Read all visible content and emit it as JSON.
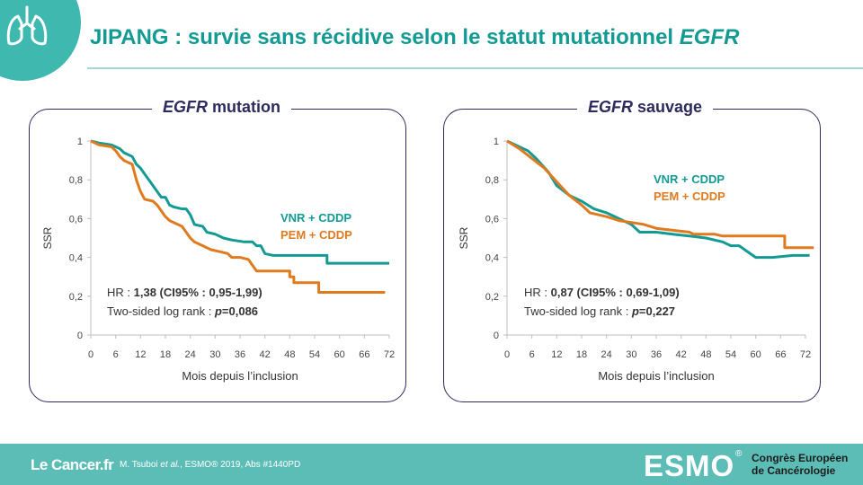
{
  "header": {
    "title_prefix": "JIPANG : survie sans récidive selon le statut mutationnel ",
    "title_italic": "EGFR"
  },
  "footer": {
    "logo": "Le Cancer.fr",
    "citation_prefix": "M. Tsuboi ",
    "citation_etal": "et al.",
    "citation_suffix": ", ESMO® 2019, Abs #1440PD",
    "esmo": "ESMO",
    "esmo_reg": "®",
    "congres_line1": "Congrès Européen",
    "congres_line2": "de Cancérologie"
  },
  "colors": {
    "vnr": "#139a93",
    "pem": "#e07a1f",
    "title": "#139a93",
    "panel_border": "#2d2a5e",
    "footer": "#5bbdb6"
  },
  "chart_data": [
    {
      "type": "line",
      "title_italic": "EGFR",
      "title_rest": " mutation",
      "xlabel": "Mois depuis l’inclusion",
      "ylabel": "SSR",
      "xlim": [
        0,
        72
      ],
      "ylim": [
        0,
        1
      ],
      "xticks": [
        0,
        6,
        12,
        18,
        24,
        30,
        36,
        42,
        48,
        54,
        60,
        66,
        72
      ],
      "yticks": [
        0,
        0.2,
        0.4,
        0.6,
        0.8,
        1
      ],
      "ytick_labels": [
        "0",
        "0,2",
        "0,4",
        "0,6",
        "0,8",
        "1"
      ],
      "legend": [
        "VNR + CDDP",
        "PEM + CDDP"
      ],
      "stats": {
        "hr_label": "HR : ",
        "hr_value": "1,38 (CI95% : 0,95-1,99)",
        "lr_label": "Two-sided log rank : ",
        "lr_p": "p",
        "lr_value": "=0,086"
      },
      "series": [
        {
          "name": "VNR + CDDP",
          "color": "#139a93",
          "points": [
            [
              0,
              1.0
            ],
            [
              2,
              0.99
            ],
            [
              5,
              0.98
            ],
            [
              7,
              0.96
            ],
            [
              8,
              0.94
            ],
            [
              10,
              0.92
            ],
            [
              11,
              0.88
            ],
            [
              12,
              0.86
            ],
            [
              13,
              0.83
            ],
            [
              14,
              0.8
            ],
            [
              15,
              0.77
            ],
            [
              16,
              0.74
            ],
            [
              17,
              0.71
            ],
            [
              18,
              0.71
            ],
            [
              19,
              0.67
            ],
            [
              20,
              0.66
            ],
            [
              22,
              0.65
            ],
            [
              23,
              0.65
            ],
            [
              24,
              0.62
            ],
            [
              25,
              0.57
            ],
            [
              27,
              0.56
            ],
            [
              28,
              0.53
            ],
            [
              30,
              0.52
            ],
            [
              32,
              0.5
            ],
            [
              34,
              0.49
            ],
            [
              37,
              0.48
            ],
            [
              39,
              0.48
            ],
            [
              40,
              0.46
            ],
            [
              41,
              0.46
            ],
            [
              42,
              0.42
            ],
            [
              44,
              0.41
            ],
            [
              50,
              0.41
            ],
            [
              55,
              0.41
            ],
            [
              57,
              0.41
            ],
            [
              57,
              0.37
            ],
            [
              60,
              0.37
            ],
            [
              72,
              0.37
            ]
          ]
        },
        {
          "name": "PEM + CDDP",
          "color": "#e07a1f",
          "points": [
            [
              0,
              1.0
            ],
            [
              2,
              0.98
            ],
            [
              5,
              0.97
            ],
            [
              6,
              0.95
            ],
            [
              7,
              0.92
            ],
            [
              8,
              0.9
            ],
            [
              9,
              0.89
            ],
            [
              10,
              0.88
            ],
            [
              11,
              0.8
            ],
            [
              12,
              0.74
            ],
            [
              13,
              0.7
            ],
            [
              15,
              0.69
            ],
            [
              16,
              0.67
            ],
            [
              17,
              0.64
            ],
            [
              18,
              0.61
            ],
            [
              19,
              0.59
            ],
            [
              21,
              0.57
            ],
            [
              22,
              0.56
            ],
            [
              23,
              0.53
            ],
            [
              24,
              0.5
            ],
            [
              25,
              0.48
            ],
            [
              27,
              0.46
            ],
            [
              29,
              0.44
            ],
            [
              31,
              0.43
            ],
            [
              33,
              0.42
            ],
            [
              34,
              0.4
            ],
            [
              36,
              0.4
            ],
            [
              38,
              0.39
            ],
            [
              39,
              0.36
            ],
            [
              40,
              0.33
            ],
            [
              43,
              0.33
            ],
            [
              48,
              0.33
            ],
            [
              48,
              0.3
            ],
            [
              49,
              0.3
            ],
            [
              49,
              0.27
            ],
            [
              52,
              0.27
            ],
            [
              55,
              0.27
            ],
            [
              55,
              0.22
            ],
            [
              60,
              0.22
            ],
            [
              71,
              0.22
            ]
          ]
        }
      ]
    },
    {
      "type": "line",
      "title_italic": "EGFR",
      "title_rest": " sauvage",
      "xlabel": "Mois depuis l’inclusion",
      "ylabel": "SSR",
      "xlim": [
        0,
        72
      ],
      "ylim": [
        0,
        1
      ],
      "xticks": [
        0,
        6,
        12,
        18,
        24,
        30,
        36,
        42,
        48,
        54,
        60,
        66,
        72
      ],
      "yticks": [
        0,
        0.2,
        0.4,
        0.6,
        0.8,
        1
      ],
      "ytick_labels": [
        "0",
        "0,2",
        "0,4",
        "0,6",
        "0,8",
        "1"
      ],
      "legend": [
        "VNR + CDDP",
        "PEM + CDDP"
      ],
      "stats": {
        "hr_label": "HR : ",
        "hr_value": "0,87 (CI95% : 0,69-1,09)",
        "lr_label": "Two-sided log rank : ",
        "lr_p": "p",
        "lr_value": "=0,227"
      },
      "series": [
        {
          "name": "VNR + CDDP",
          "color": "#139a93",
          "points": [
            [
              0,
              1.0
            ],
            [
              3,
              0.97
            ],
            [
              5,
              0.95
            ],
            [
              7,
              0.91
            ],
            [
              10,
              0.84
            ],
            [
              12,
              0.77
            ],
            [
              15,
              0.72
            ],
            [
              18,
              0.69
            ],
            [
              21,
              0.65
            ],
            [
              24,
              0.63
            ],
            [
              27,
              0.6
            ],
            [
              30,
              0.57
            ],
            [
              32,
              0.53
            ],
            [
              36,
              0.53
            ],
            [
              40,
              0.52
            ],
            [
              44,
              0.51
            ],
            [
              48,
              0.5
            ],
            [
              52,
              0.48
            ],
            [
              54,
              0.46
            ],
            [
              56,
              0.46
            ],
            [
              58,
              0.43
            ],
            [
              60,
              0.4
            ],
            [
              64,
              0.4
            ],
            [
              69,
              0.41
            ],
            [
              73,
              0.41
            ]
          ]
        },
        {
          "name": "PEM + CDDP",
          "color": "#e07a1f",
          "points": [
            [
              0,
              1.0
            ],
            [
              3,
              0.96
            ],
            [
              6,
              0.91
            ],
            [
              9,
              0.86
            ],
            [
              12,
              0.79
            ],
            [
              15,
              0.72
            ],
            [
              18,
              0.67
            ],
            [
              20,
              0.63
            ],
            [
              24,
              0.61
            ],
            [
              27,
              0.59
            ],
            [
              30,
              0.58
            ],
            [
              33,
              0.57
            ],
            [
              36,
              0.55
            ],
            [
              40,
              0.54
            ],
            [
              44,
              0.53
            ],
            [
              45,
              0.52
            ],
            [
              50,
              0.52
            ],
            [
              52,
              0.51
            ],
            [
              56,
              0.51
            ],
            [
              60,
              0.51
            ],
            [
              67,
              0.51
            ],
            [
              67,
              0.45
            ],
            [
              70,
              0.45
            ],
            [
              74,
              0.45
            ]
          ]
        }
      ]
    }
  ]
}
